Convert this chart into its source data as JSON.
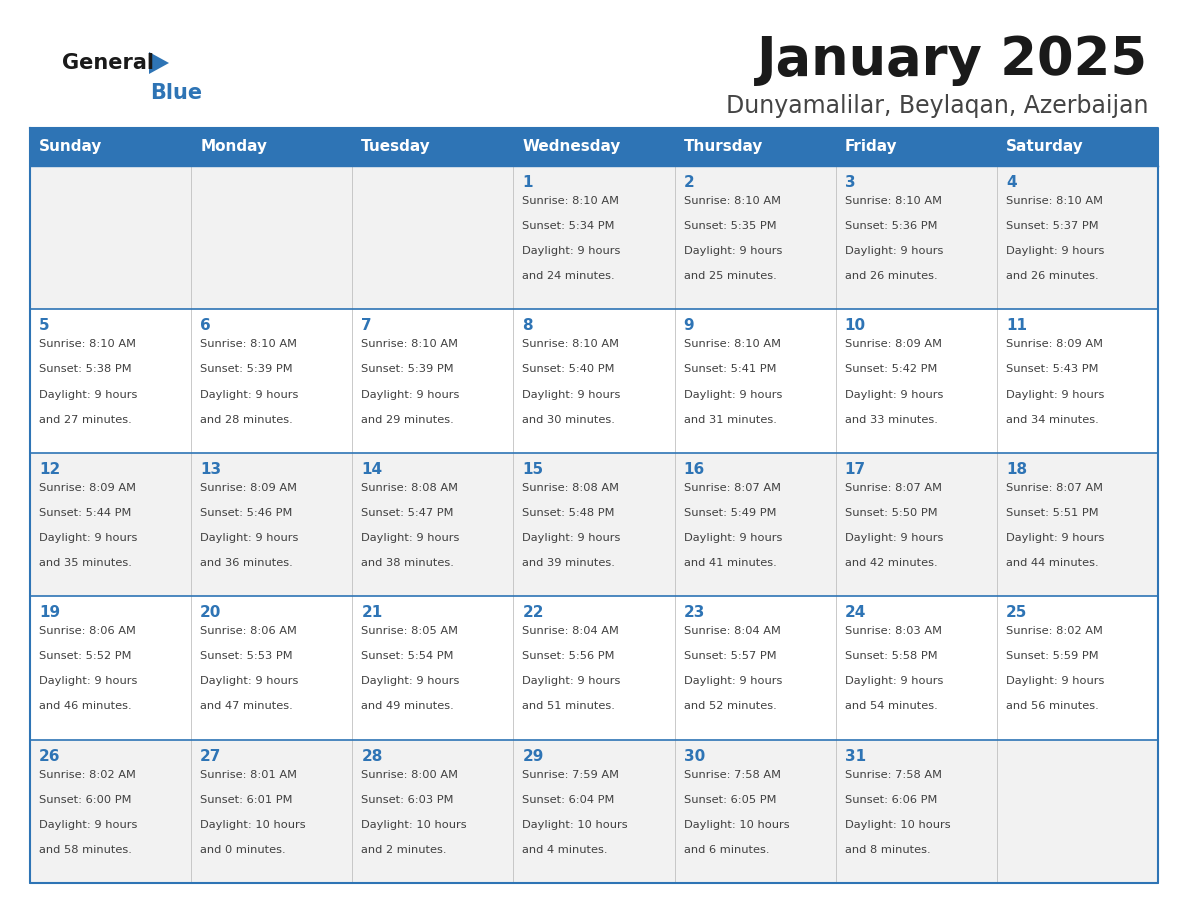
{
  "title": "January 2025",
  "subtitle": "Dunyamalilar, Beylaqan, Azerbaijan",
  "days_of_week": [
    "Sunday",
    "Monday",
    "Tuesday",
    "Wednesday",
    "Thursday",
    "Friday",
    "Saturday"
  ],
  "header_bg": "#2e74b5",
  "header_text_color": "#ffffff",
  "row_bg_odd": "#f2f2f2",
  "row_bg_even": "#ffffff",
  "cell_border_color": "#2e74b5",
  "day_number_color": "#2e74b5",
  "cell_text_color": "#404040",
  "title_color": "#1a1a1a",
  "subtitle_color": "#444444",
  "logo_general_color": "#1a1a1a",
  "logo_blue_color": "#2e74b5",
  "weeks": [
    [
      {
        "day": null,
        "info": null
      },
      {
        "day": null,
        "info": null
      },
      {
        "day": null,
        "info": null
      },
      {
        "day": 1,
        "info": "Sunrise: 8:10 AM\nSunset: 5:34 PM\nDaylight: 9 hours\nand 24 minutes."
      },
      {
        "day": 2,
        "info": "Sunrise: 8:10 AM\nSunset: 5:35 PM\nDaylight: 9 hours\nand 25 minutes."
      },
      {
        "day": 3,
        "info": "Sunrise: 8:10 AM\nSunset: 5:36 PM\nDaylight: 9 hours\nand 26 minutes."
      },
      {
        "day": 4,
        "info": "Sunrise: 8:10 AM\nSunset: 5:37 PM\nDaylight: 9 hours\nand 26 minutes."
      }
    ],
    [
      {
        "day": 5,
        "info": "Sunrise: 8:10 AM\nSunset: 5:38 PM\nDaylight: 9 hours\nand 27 minutes."
      },
      {
        "day": 6,
        "info": "Sunrise: 8:10 AM\nSunset: 5:39 PM\nDaylight: 9 hours\nand 28 minutes."
      },
      {
        "day": 7,
        "info": "Sunrise: 8:10 AM\nSunset: 5:39 PM\nDaylight: 9 hours\nand 29 minutes."
      },
      {
        "day": 8,
        "info": "Sunrise: 8:10 AM\nSunset: 5:40 PM\nDaylight: 9 hours\nand 30 minutes."
      },
      {
        "day": 9,
        "info": "Sunrise: 8:10 AM\nSunset: 5:41 PM\nDaylight: 9 hours\nand 31 minutes."
      },
      {
        "day": 10,
        "info": "Sunrise: 8:09 AM\nSunset: 5:42 PM\nDaylight: 9 hours\nand 33 minutes."
      },
      {
        "day": 11,
        "info": "Sunrise: 8:09 AM\nSunset: 5:43 PM\nDaylight: 9 hours\nand 34 minutes."
      }
    ],
    [
      {
        "day": 12,
        "info": "Sunrise: 8:09 AM\nSunset: 5:44 PM\nDaylight: 9 hours\nand 35 minutes."
      },
      {
        "day": 13,
        "info": "Sunrise: 8:09 AM\nSunset: 5:46 PM\nDaylight: 9 hours\nand 36 minutes."
      },
      {
        "day": 14,
        "info": "Sunrise: 8:08 AM\nSunset: 5:47 PM\nDaylight: 9 hours\nand 38 minutes."
      },
      {
        "day": 15,
        "info": "Sunrise: 8:08 AM\nSunset: 5:48 PM\nDaylight: 9 hours\nand 39 minutes."
      },
      {
        "day": 16,
        "info": "Sunrise: 8:07 AM\nSunset: 5:49 PM\nDaylight: 9 hours\nand 41 minutes."
      },
      {
        "day": 17,
        "info": "Sunrise: 8:07 AM\nSunset: 5:50 PM\nDaylight: 9 hours\nand 42 minutes."
      },
      {
        "day": 18,
        "info": "Sunrise: 8:07 AM\nSunset: 5:51 PM\nDaylight: 9 hours\nand 44 minutes."
      }
    ],
    [
      {
        "day": 19,
        "info": "Sunrise: 8:06 AM\nSunset: 5:52 PM\nDaylight: 9 hours\nand 46 minutes."
      },
      {
        "day": 20,
        "info": "Sunrise: 8:06 AM\nSunset: 5:53 PM\nDaylight: 9 hours\nand 47 minutes."
      },
      {
        "day": 21,
        "info": "Sunrise: 8:05 AM\nSunset: 5:54 PM\nDaylight: 9 hours\nand 49 minutes."
      },
      {
        "day": 22,
        "info": "Sunrise: 8:04 AM\nSunset: 5:56 PM\nDaylight: 9 hours\nand 51 minutes."
      },
      {
        "day": 23,
        "info": "Sunrise: 8:04 AM\nSunset: 5:57 PM\nDaylight: 9 hours\nand 52 minutes."
      },
      {
        "day": 24,
        "info": "Sunrise: 8:03 AM\nSunset: 5:58 PM\nDaylight: 9 hours\nand 54 minutes."
      },
      {
        "day": 25,
        "info": "Sunrise: 8:02 AM\nSunset: 5:59 PM\nDaylight: 9 hours\nand 56 minutes."
      }
    ],
    [
      {
        "day": 26,
        "info": "Sunrise: 8:02 AM\nSunset: 6:00 PM\nDaylight: 9 hours\nand 58 minutes."
      },
      {
        "day": 27,
        "info": "Sunrise: 8:01 AM\nSunset: 6:01 PM\nDaylight: 10 hours\nand 0 minutes."
      },
      {
        "day": 28,
        "info": "Sunrise: 8:00 AM\nSunset: 6:03 PM\nDaylight: 10 hours\nand 2 minutes."
      },
      {
        "day": 29,
        "info": "Sunrise: 7:59 AM\nSunset: 6:04 PM\nDaylight: 10 hours\nand 4 minutes."
      },
      {
        "day": 30,
        "info": "Sunrise: 7:58 AM\nSunset: 6:05 PM\nDaylight: 10 hours\nand 6 minutes."
      },
      {
        "day": 31,
        "info": "Sunrise: 7:58 AM\nSunset: 6:06 PM\nDaylight: 10 hours\nand 8 minutes."
      },
      {
        "day": null,
        "info": null
      }
    ]
  ]
}
